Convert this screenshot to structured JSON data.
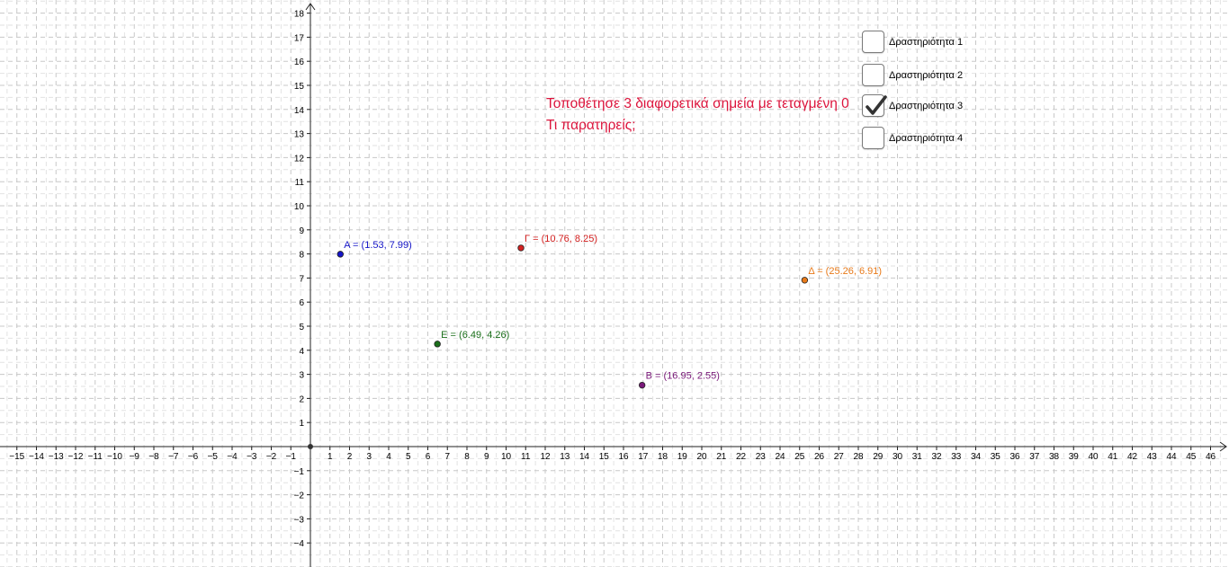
{
  "graph": {
    "x_range": [
      -15,
      46
    ],
    "y_range": [
      -4,
      18
    ],
    "grid": "dashed",
    "points": [
      {
        "name": "A",
        "label": "A = (1.53, 7.99)",
        "x": 1.53,
        "y": 7.99,
        "color": "#1515c8"
      },
      {
        "name": "Γ",
        "label": "Γ = (10.76, 8.25)",
        "x": 10.76,
        "y": 8.25,
        "color": "#d42020"
      },
      {
        "name": "Δ",
        "label": "Δ = (25.26, 6.91)",
        "x": 25.26,
        "y": 6.91,
        "color": "#e87a1a"
      },
      {
        "name": "E",
        "label": "E = (6.49, 4.26)",
        "x": 6.49,
        "y": 4.26,
        "color": "#1a6e1a"
      },
      {
        "name": "B",
        "label": "B = (16.95, 2.55)",
        "x": 16.95,
        "y": 2.55,
        "color": "#7a1a7a"
      }
    ]
  },
  "task": {
    "line1": "Τοποθέτησε 3 διαφορετικά σημεία με τεταγμένη 0",
    "line2": "Τι παρατηρείς;",
    "color": "#dc143c"
  },
  "checkboxes": [
    {
      "label": "Δραστηριότητα 1",
      "checked": false
    },
    {
      "label": "Δραστηριότητα 2",
      "checked": false
    },
    {
      "label": "Δραστηριότητα 3",
      "checked": true
    },
    {
      "label": "Δραστηριότητα 4",
      "checked": false
    }
  ]
}
